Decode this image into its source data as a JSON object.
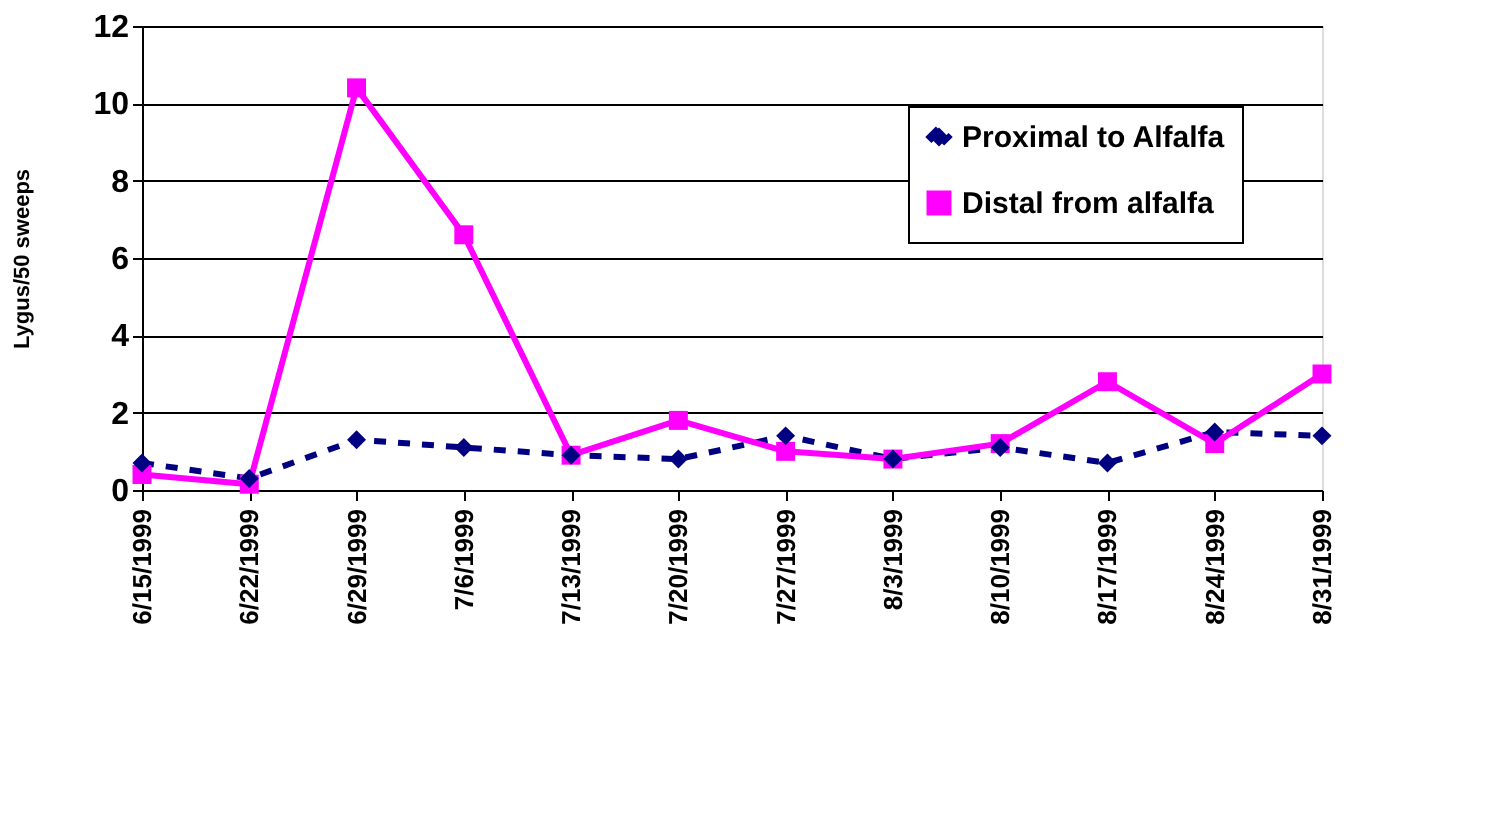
{
  "chart_data": {
    "type": "line",
    "ylabel": "Lygus/50 sweeps",
    "categories": [
      "6/15/1999",
      "6/22/1999",
      "6/29/1999",
      "7/6/1999",
      "7/13/1999",
      "7/20/1999",
      "7/27/1999",
      "8/3/1999",
      "8/10/1999",
      "8/17/1999",
      "8/24/1999",
      "8/31/1999"
    ],
    "series": [
      {
        "name": "Proximal to Alfalfa",
        "color": "#000080",
        "marker": "diamond",
        "line_style": "dashed",
        "values": [
          0.7,
          0.3,
          1.3,
          1.1,
          0.9,
          0.8,
          1.4,
          0.8,
          1.1,
          0.7,
          1.5,
          1.4
        ]
      },
      {
        "name": "Distal from alfalfa",
        "color": "#ff00ff",
        "marker": "square",
        "line_style": "solid",
        "values": [
          0.4,
          0.15,
          10.4,
          6.6,
          0.9,
          1.8,
          1.0,
          0.8,
          1.2,
          2.8,
          1.2,
          3.0
        ]
      }
    ],
    "ylim": [
      0,
      12
    ],
    "yticks": [
      0,
      2,
      4,
      6,
      8,
      10,
      12
    ],
    "grid": "y",
    "legend": "top right"
  }
}
